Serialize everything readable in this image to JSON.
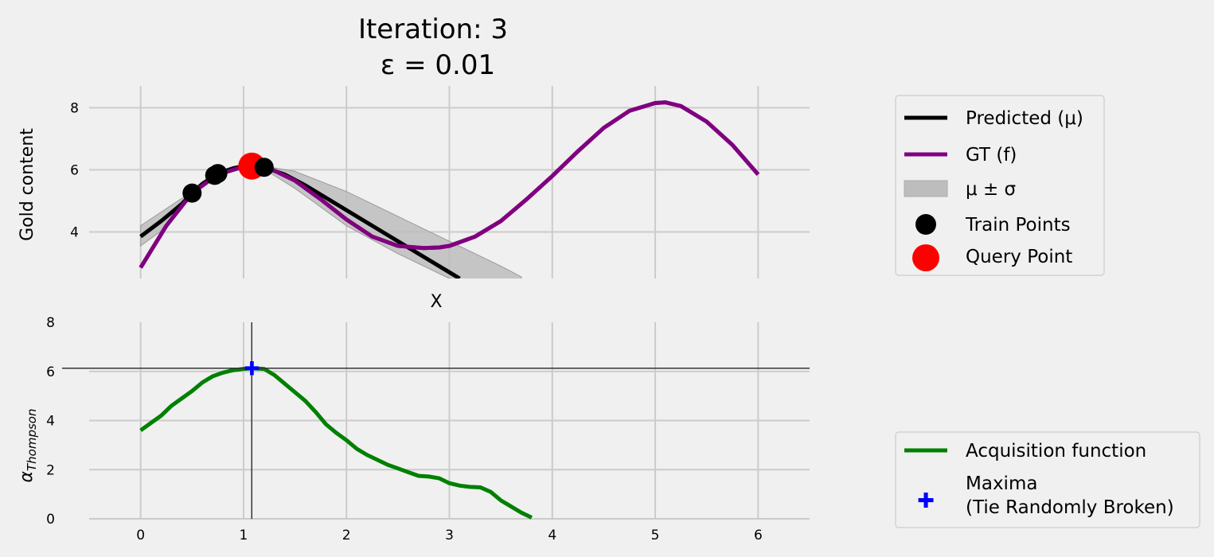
{
  "chart_data": [
    {
      "type": "line",
      "title": "Iteration: 3",
      "subtitle": "ε = 0.01",
      "xlabel": "X",
      "ylabel": "Gold content",
      "xlim": [
        -0.5,
        6.5
      ],
      "ylim": [
        2.5,
        8.7
      ],
      "xticks": [
        "0",
        "1",
        "2",
        "3",
        "4",
        "5",
        "6"
      ],
      "yticks": [
        "4",
        "6",
        "8"
      ],
      "grid": true,
      "legend_position": "right",
      "series": [
        {
          "name": "Predicted (μ)",
          "color": "#000000",
          "x": [
            0,
            0.2,
            0.4,
            0.5,
            0.6,
            0.75,
            0.9,
            1.0,
            1.08,
            1.2,
            1.4,
            1.6,
            1.8,
            2.0,
            2.2,
            2.4,
            2.6,
            2.8,
            3.0,
            3.1
          ],
          "y": [
            3.85,
            4.35,
            4.9,
            5.25,
            5.55,
            5.88,
            6.05,
            6.12,
            6.12,
            6.08,
            5.85,
            5.5,
            5.1,
            4.7,
            4.3,
            3.9,
            3.5,
            3.1,
            2.7,
            2.5
          ]
        },
        {
          "name": "GT (f)",
          "color": "#800080",
          "x": [
            0,
            0.25,
            0.5,
            0.75,
            1.0,
            1.1,
            1.25,
            1.5,
            1.75,
            2.0,
            2.25,
            2.5,
            2.75,
            2.9,
            3.0,
            3.25,
            3.5,
            3.75,
            4.0,
            4.25,
            4.5,
            4.75,
            5.0,
            5.1,
            5.25,
            5.5,
            5.75,
            6.0
          ],
          "y": [
            2.85,
            4.2,
            5.25,
            5.85,
            6.1,
            6.12,
            6.05,
            5.65,
            5.05,
            4.4,
            3.85,
            3.55,
            3.48,
            3.5,
            3.55,
            3.85,
            4.35,
            5.05,
            5.8,
            6.6,
            7.35,
            7.9,
            8.15,
            8.17,
            8.05,
            7.55,
            6.8,
            5.85
          ]
        }
      ],
      "band": {
        "name": "μ ± σ",
        "color": "#bdbdbd",
        "x": [
          0,
          0.25,
          0.5,
          0.75,
          1.0,
          1.2,
          1.5,
          2.0,
          2.5,
          3.0,
          3.5,
          3.7
        ],
        "upper": [
          4.2,
          4.75,
          5.3,
          5.95,
          6.18,
          6.12,
          5.95,
          5.3,
          4.5,
          3.7,
          2.9,
          2.55
        ],
        "lower": [
          3.55,
          4.15,
          5.2,
          5.78,
          6.08,
          6.02,
          5.4,
          4.2,
          3.3,
          2.5,
          1.6,
          1.2
        ]
      },
      "scatter": [
        {
          "name": "Train Points",
          "color": "#000000",
          "x": [
            0.5,
            0.72,
            0.75,
            1.2
          ],
          "y": [
            5.25,
            5.82,
            5.88,
            6.08
          ]
        },
        {
          "name": "Query Point",
          "color": "#ff0000",
          "x": [
            1.08
          ],
          "y": [
            6.12
          ]
        }
      ]
    },
    {
      "type": "line",
      "xlabel": "",
      "ylabel": "α",
      "ylabel_subscript": "Thompson",
      "xlim": [
        -0.5,
        6.5
      ],
      "ylim": [
        0,
        8
      ],
      "xticks": [
        "0",
        "1",
        "2",
        "3",
        "4",
        "5",
        "6"
      ],
      "yticks": [
        "0",
        "2",
        "4",
        "6",
        "8"
      ],
      "grid": true,
      "legend_position": "right",
      "series": [
        {
          "name": "Acquisition function",
          "color": "#008000",
          "x": [
            0,
            0.1,
            0.2,
            0.3,
            0.4,
            0.5,
            0.6,
            0.7,
            0.8,
            0.9,
            1.0,
            1.08,
            1.2,
            1.3,
            1.4,
            1.5,
            1.6,
            1.7,
            1.8,
            1.9,
            2.0,
            2.1,
            2.2,
            2.3,
            2.4,
            2.5,
            2.6,
            2.7,
            2.8,
            2.9,
            3.0,
            3.1,
            3.2,
            3.3,
            3.4,
            3.5,
            3.6,
            3.7,
            3.8
          ],
          "y": [
            3.6,
            3.9,
            4.2,
            4.6,
            4.9,
            5.2,
            5.55,
            5.8,
            5.95,
            6.05,
            6.1,
            6.13,
            6.1,
            5.85,
            5.5,
            5.15,
            4.8,
            4.35,
            3.85,
            3.5,
            3.2,
            2.85,
            2.6,
            2.4,
            2.2,
            2.05,
            1.9,
            1.75,
            1.72,
            1.65,
            1.45,
            1.35,
            1.3,
            1.28,
            1.1,
            0.75,
            0.5,
            0.25,
            0.05
          ]
        }
      ],
      "maxima": {
        "name": "Maxima\n(Tie Randomly Broken)",
        "color": "#0000ff",
        "x": 1.08,
        "y": 6.13
      }
    }
  ]
}
